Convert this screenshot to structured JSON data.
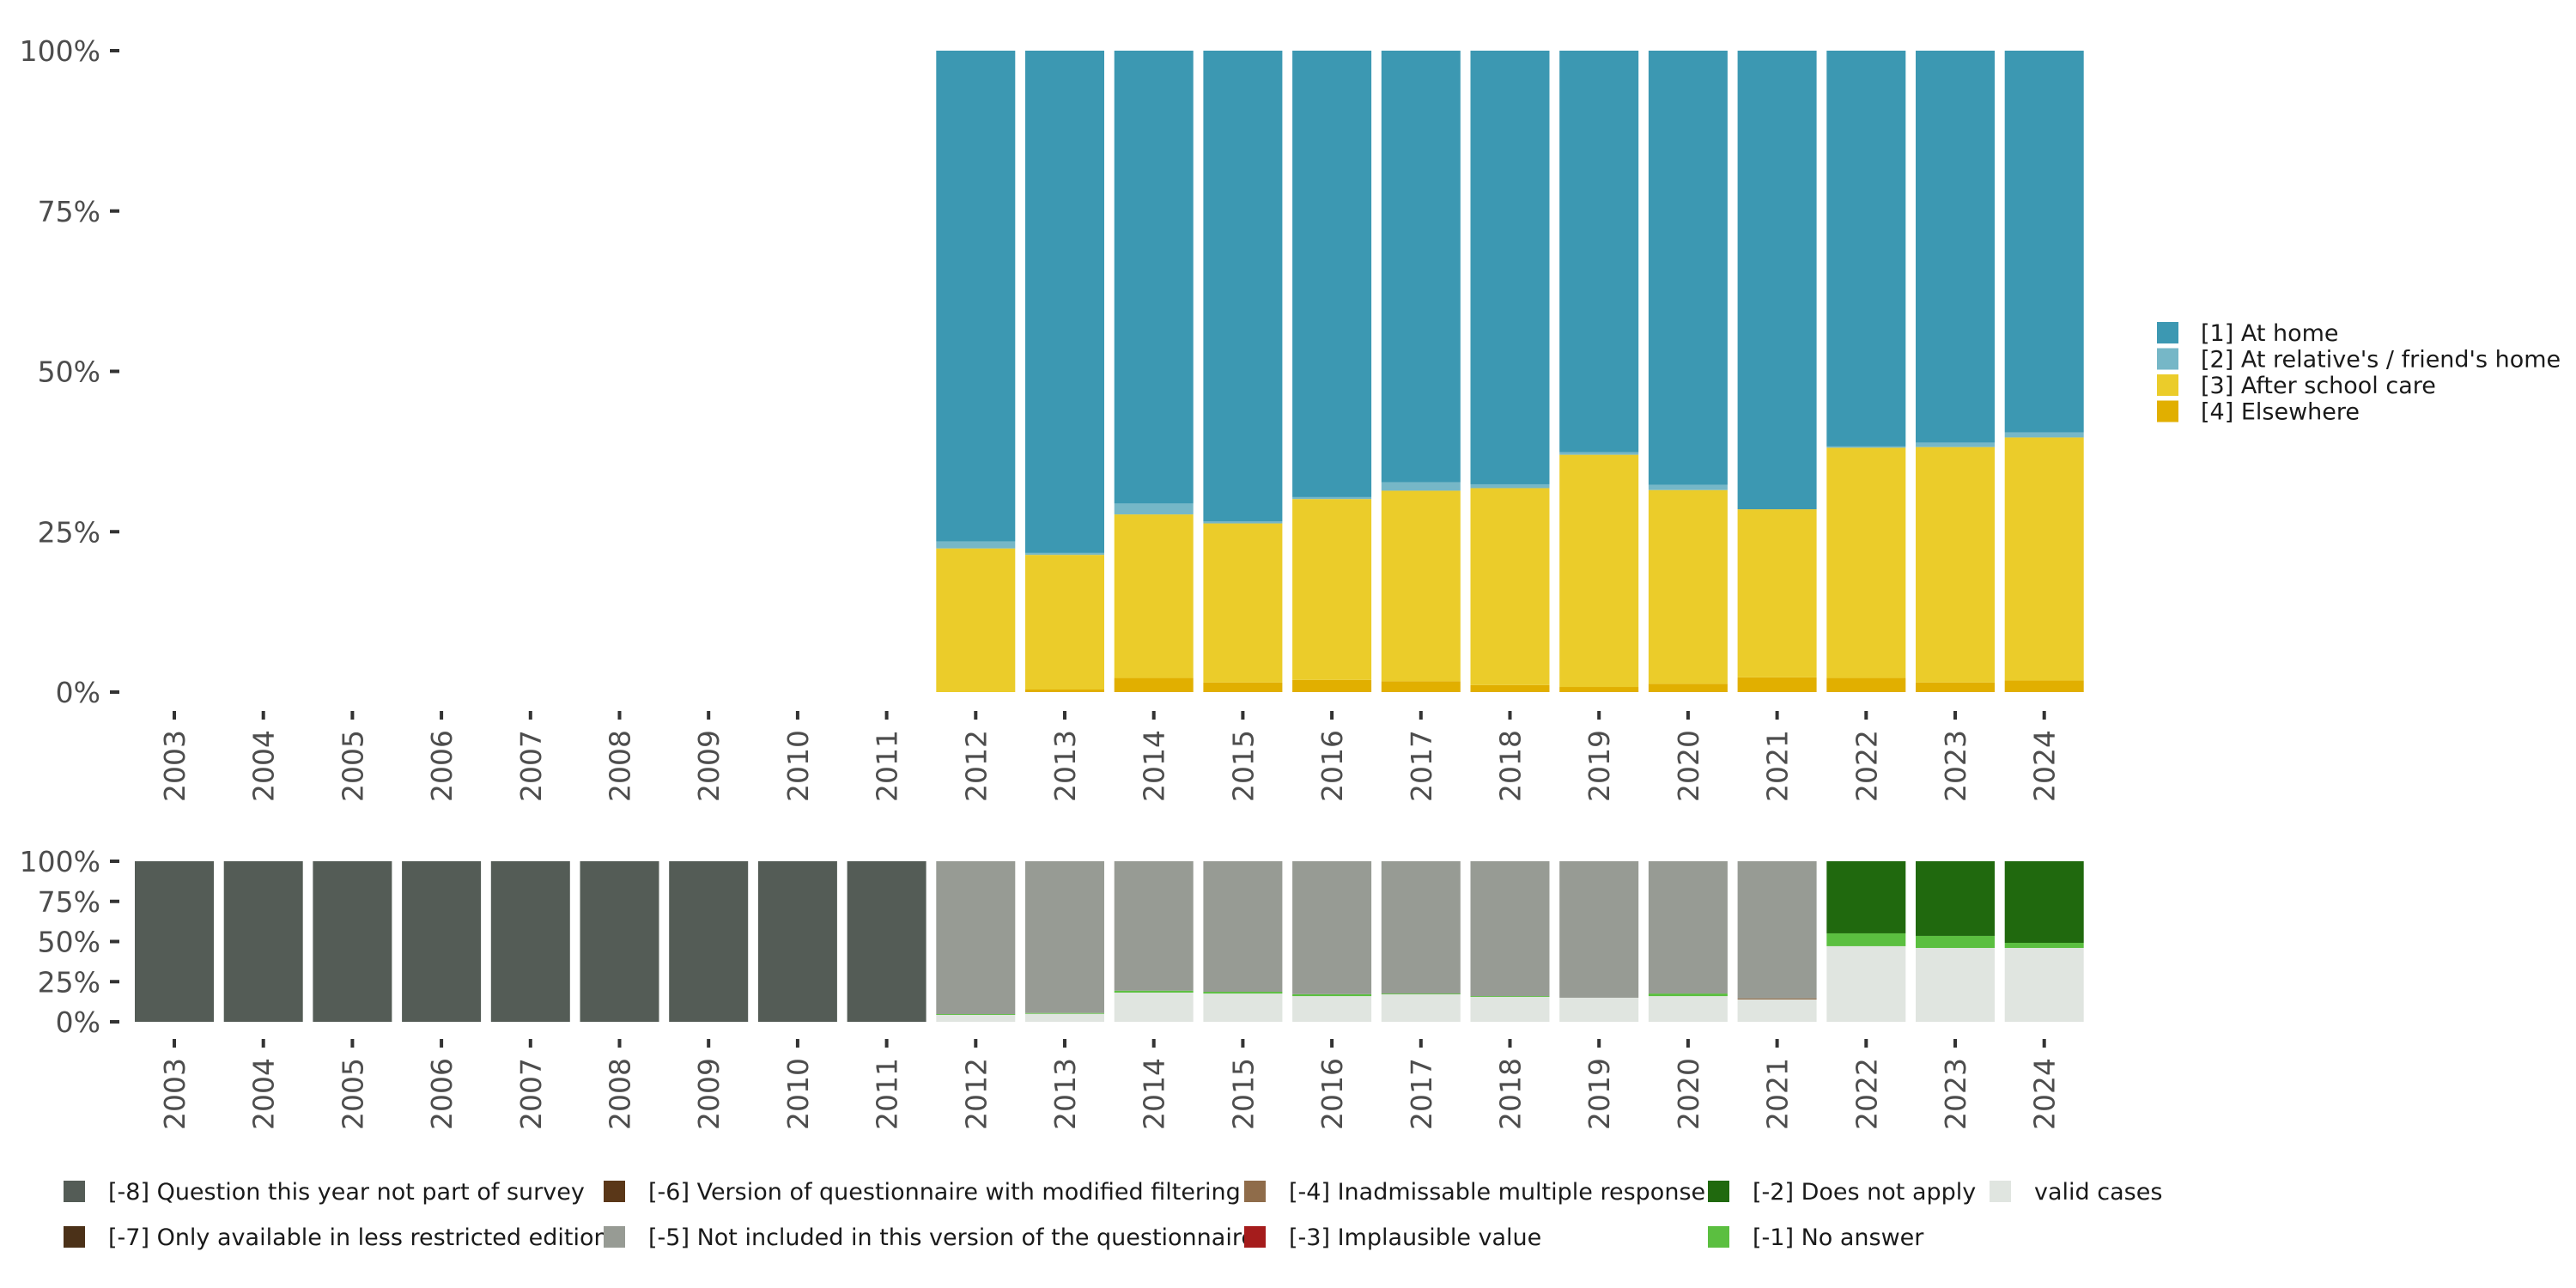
{
  "chart_data": [
    {
      "type": "bar",
      "stacked": true,
      "normalized": true,
      "categories": [
        "2003",
        "2004",
        "2005",
        "2006",
        "2007",
        "2008",
        "2009",
        "2010",
        "2011",
        "2012",
        "2013",
        "2014",
        "2015",
        "2016",
        "2017",
        "2018",
        "2019",
        "2020",
        "2021",
        "2022",
        "2023",
        "2024"
      ],
      "yticks": [
        "0%",
        "25%",
        "50%",
        "75%",
        "100%"
      ],
      "ylim": [
        0,
        100
      ],
      "legend_position": "right",
      "series": [
        {
          "name": "[4] Elsewhere",
          "color": "#E1AF00",
          "values": [
            null,
            null,
            null,
            null,
            null,
            null,
            null,
            null,
            null,
            0.0,
            0.4,
            2.2,
            1.5,
            1.9,
            1.7,
            1.1,
            0.8,
            1.3,
            2.3,
            2.2,
            1.5,
            1.8
          ]
        },
        {
          "name": "[3] After school care",
          "color": "#EBCC2A",
          "values": [
            null,
            null,
            null,
            null,
            null,
            null,
            null,
            null,
            null,
            22.4,
            21.0,
            25.5,
            24.8,
            28.2,
            29.7,
            30.7,
            36.2,
            30.2,
            26.2,
            35.9,
            36.7,
            37.9
          ]
        },
        {
          "name": "[2] At relative's / friend's home",
          "color": "#76B7C7",
          "values": [
            null,
            null,
            null,
            null,
            null,
            null,
            null,
            null,
            null,
            1.1,
            0.3,
            1.7,
            0.3,
            0.3,
            1.3,
            0.6,
            0.4,
            0.8,
            0.0,
            0.2,
            0.7,
            0.8
          ]
        },
        {
          "name": "[1] At home",
          "color": "#3C98B2",
          "values": [
            null,
            null,
            null,
            null,
            null,
            null,
            null,
            null,
            null,
            76.5,
            78.3,
            70.6,
            73.4,
            69.6,
            67.3,
            67.6,
            62.6,
            67.7,
            71.5,
            61.7,
            61.1,
            59.5
          ]
        }
      ]
    },
    {
      "type": "bar",
      "stacked": true,
      "normalized": true,
      "categories": [
        "2003",
        "2004",
        "2005",
        "2006",
        "2007",
        "2008",
        "2009",
        "2010",
        "2011",
        "2012",
        "2013",
        "2014",
        "2015",
        "2016",
        "2017",
        "2018",
        "2019",
        "2020",
        "2021",
        "2022",
        "2023",
        "2024"
      ],
      "yticks": [
        "0%",
        "25%",
        "50%",
        "75%",
        "100%"
      ],
      "ylim": [
        0,
        100
      ],
      "legend_position": "bottom",
      "legend_order": [
        "[-8] Question this year not part of survey",
        "[-6] Version of questionnaire with modified filtering",
        "[-4] Inadmissable multiple response",
        "[-2] Does not apply",
        "valid cases",
        "[-7] Only available in less restricted edition",
        "[-5] Not included in this version of the questionnaire",
        "[-3] Implausible value",
        "[-1] No answer"
      ],
      "series": [
        {
          "name": "valid cases",
          "color": "#E0E5E0",
          "values": [
            0,
            0,
            0,
            0,
            0,
            0,
            0,
            0,
            0,
            4.3,
            5.0,
            18.2,
            17.6,
            16.0,
            17.1,
            15.5,
            15.0,
            16.0,
            13.9,
            47.1,
            46.0,
            46.0
          ]
        },
        {
          "name": "[-1] No answer",
          "color": "#5BBF40",
          "values": [
            0,
            0,
            0,
            0,
            0,
            0,
            0,
            0,
            0,
            0.5,
            0.5,
            1.2,
            1.1,
            1.2,
            0.5,
            0.5,
            0,
            1.6,
            0,
            8.0,
            7.5,
            3.2
          ]
        },
        {
          "name": "[-2] Does not apply",
          "color": "#20690E",
          "values": [
            0,
            0,
            0,
            0,
            0,
            0,
            0,
            0,
            0,
            0,
            0,
            0,
            0,
            0,
            0,
            0,
            0,
            0,
            0,
            44.9,
            46.5,
            50.8
          ]
        },
        {
          "name": "[-3] Implausible value",
          "color": "#A51C1C",
          "values": [
            0,
            0,
            0,
            0,
            0,
            0,
            0,
            0,
            0,
            0,
            0,
            0,
            0,
            0,
            0,
            0,
            0,
            0,
            0,
            0,
            0,
            0
          ]
        },
        {
          "name": "[-4] Inadmissable multiple response",
          "color": "#8F6C4A",
          "values": [
            0,
            0,
            0,
            0,
            0,
            0,
            0,
            0,
            0,
            0,
            0,
            0,
            0,
            0,
            0,
            0,
            0,
            0,
            0.7,
            0,
            0,
            0
          ]
        },
        {
          "name": "[-5] Not included in this version of the questionnaire",
          "color": "#979B94",
          "values": [
            0,
            0,
            0,
            0,
            0,
            0,
            0,
            0,
            0,
            95.2,
            94.5,
            80.6,
            81.3,
            82.8,
            82.4,
            84.0,
            85.0,
            82.4,
            85.4,
            0,
            0,
            0
          ]
        },
        {
          "name": "[-6] Version of questionnaire with modified filtering",
          "color": "#5A3718",
          "values": [
            0,
            0,
            0,
            0,
            0,
            0,
            0,
            0,
            0,
            0,
            0,
            0,
            0,
            0,
            0,
            0,
            0,
            0,
            0,
            0,
            0,
            0
          ]
        },
        {
          "name": "[-7] Only available in less restricted edition",
          "color": "#4B3118",
          "values": [
            0,
            0,
            0,
            0,
            0,
            0,
            0,
            0,
            0,
            0,
            0,
            0,
            0,
            0,
            0,
            0,
            0,
            0,
            0,
            0,
            0,
            0
          ]
        },
        {
          "name": "[-8] Question this year not part of survey",
          "color": "#545C56",
          "values": [
            100,
            100,
            100,
            100,
            100,
            100,
            100,
            100,
            100,
            0,
            0,
            0,
            0,
            0,
            0,
            0,
            0,
            0,
            0,
            0,
            0,
            0
          ]
        }
      ]
    }
  ]
}
